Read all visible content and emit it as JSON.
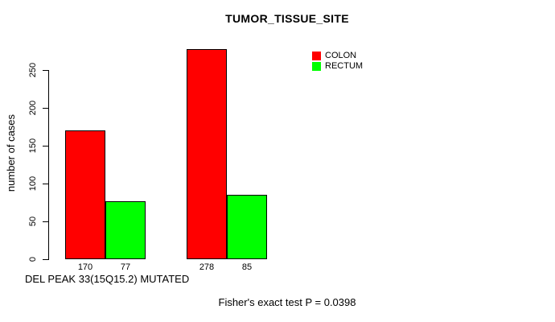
{
  "chart_data": {
    "type": "bar",
    "title": "TUMOR_TISSUE_SITE",
    "ylabel": "number of cases",
    "xlabel": "DEL PEAK 33(15Q15.2) MUTATED",
    "annotation": "Fisher's exact test P = 0.0398",
    "yticks": [
      0,
      50,
      100,
      150,
      200,
      250
    ],
    "ylim": [
      0,
      280
    ],
    "grid": false,
    "legend_position": "top-right",
    "bar_value_labels": [
      "170",
      "77",
      "278",
      "85"
    ],
    "series": [
      {
        "name": "COLON",
        "color": "#ff0000",
        "values": [
          170,
          278
        ]
      },
      {
        "name": "RECTUM",
        "color": "#00ff00",
        "values": [
          77,
          85
        ]
      }
    ]
  },
  "colors": {
    "background": "#ffffff",
    "text": "#000000",
    "axis": "#000000",
    "bar_border": "#000000",
    "colon_red": "#ff0000",
    "rectum_green": "#00ff00"
  }
}
